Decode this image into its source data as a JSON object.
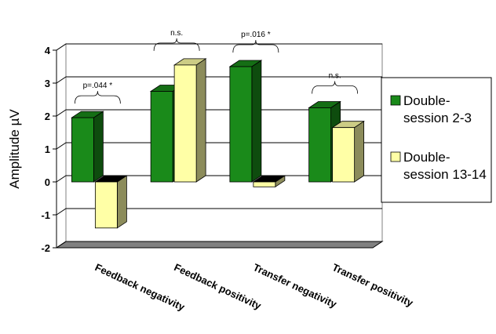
{
  "chart_data": {
    "type": "bar",
    "style": "3d-clustered",
    "categories": [
      "Feedback negativity",
      "Feedback positivity",
      "Transfer negativity",
      "Transfer positivity"
    ],
    "series": [
      {
        "name": "Double-session 2-3",
        "legend_lines": [
          "Double-",
          "session 2-3"
        ],
        "color": "#1a8a1a",
        "values": [
          1.95,
          2.75,
          3.5,
          2.25
        ]
      },
      {
        "name": "Double-session 13-14",
        "legend_lines": [
          "Double-",
          "session 13-14"
        ],
        "color": "#ffffa6",
        "values": [
          -1.4,
          3.55,
          -0.15,
          1.65
        ]
      }
    ],
    "ylabel": "Amplitude µV",
    "ylim": [
      -2,
      4
    ],
    "yticks": [
      "-2",
      "-1",
      "0",
      "1",
      "2",
      "3",
      "4"
    ],
    "grid": true,
    "legend": "right",
    "annotations": [
      {
        "category": 0,
        "text": "p=.044 *"
      },
      {
        "category": 1,
        "text": "n.s."
      },
      {
        "category": 2,
        "text": "p=.016 *"
      },
      {
        "category": 3,
        "text": "n.s."
      }
    ]
  }
}
